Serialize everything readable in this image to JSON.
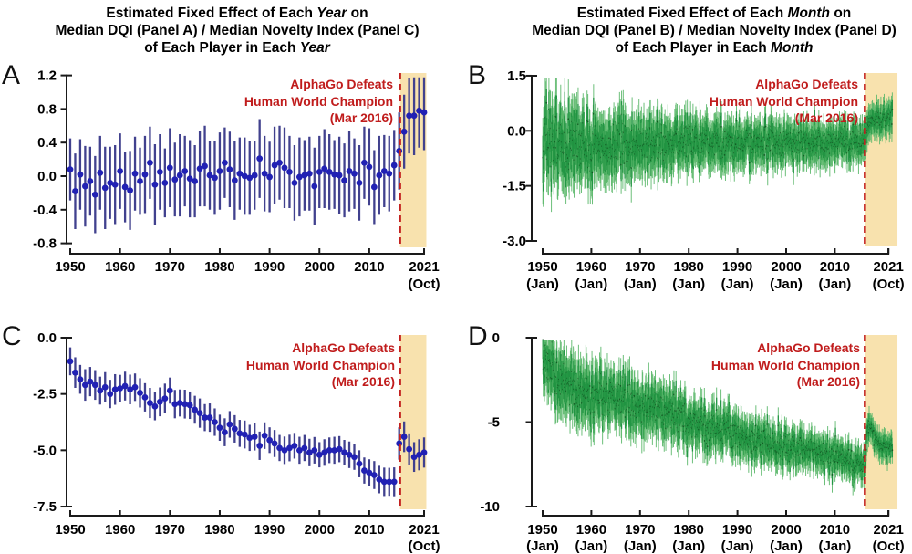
{
  "figure": {
    "left_title": {
      "lines": [
        [
          {
            "t": "Estimated Fixed Effect of Each "
          },
          {
            "t": "Year",
            "i": 1
          },
          {
            "t": " on"
          }
        ],
        [
          {
            "t": "Median DQI (Panel A) / Median Novelty Index (Panel C)"
          }
        ],
        [
          {
            "t": "of Each Player in Each "
          },
          {
            "t": "Year",
            "i": 1
          }
        ]
      ]
    },
    "right_title": {
      "lines": [
        [
          {
            "t": "Estimated Fixed Effect of Each "
          },
          {
            "t": "Month",
            "i": 1
          },
          {
            "t": " on"
          }
        ],
        [
          {
            "t": "Median DQI (Panel B) / Median Novelty Index (Panel D)"
          }
        ],
        [
          {
            "t": "of Each Player in Each "
          },
          {
            "t": "Month",
            "i": 1
          }
        ]
      ]
    },
    "annotation": {
      "line1": "AlphaGo Defeats",
      "line2": "Human World Champion",
      "line3": "(Mar 2016)",
      "color": "#c01c1c"
    },
    "colors": {
      "blue_point": "#2121b4",
      "blue_bar": "#41418e",
      "green_bar_outer": "#5cb86b",
      "green_bar_inner": "#1f9240",
      "green_dot": "#0f4a1c",
      "band": "#f8e2ae",
      "dash_line": "#c3201f",
      "axis": "#1a1a1a",
      "tick_text": "#000000"
    }
  },
  "chart_data": [
    {
      "panel": "A",
      "type": "scatter",
      "series_name": "Yearly fixed effect on Median DQI",
      "x_start_year": 1950,
      "ylim": [
        -0.8,
        1.2
      ],
      "y_ticks": [
        {
          "v": 1.2,
          "label": "1.2"
        },
        {
          "v": 0.8,
          "label": "0.8"
        },
        {
          "v": 0.4,
          "label": "0.4"
        },
        {
          "v": 0.0,
          "label": "0.0"
        },
        {
          "v": -0.4,
          "label": "-0.4"
        },
        {
          "v": -0.8,
          "label": "-0.8"
        }
      ],
      "x_ticks": [
        {
          "v": 1950,
          "l1": "1950"
        },
        {
          "v": 1960,
          "l1": "1960"
        },
        {
          "v": 1970,
          "l1": "1970"
        },
        {
          "v": 1980,
          "l1": "1980"
        },
        {
          "v": 1990,
          "l1": "1990"
        },
        {
          "v": 2000,
          "l1": "2000"
        },
        {
          "v": 2010,
          "l1": "2010"
        },
        {
          "v": 2021,
          "l1": "2021",
          "l2": "(Oct)"
        }
      ],
      "event_x": 2016.17,
      "band_end_x": 2021.45,
      "values": [
        0.08,
        -0.18,
        0.02,
        -0.12,
        -0.06,
        -0.22,
        0.04,
        -0.14,
        -0.08,
        -0.1,
        0.06,
        -0.13,
        -0.17,
        0.03,
        -0.06,
        0.02,
        0.16,
        -0.1,
        0.05,
        -0.08,
        0.1,
        -0.04,
        0.01,
        0.06,
        -0.03,
        -0.06,
        0.09,
        0.12,
        0.01,
        -0.02,
        0.06,
        0.16,
        0.08,
        -0.05,
        0.03,
        0.0,
        -0.02,
        0.01,
        0.21,
        0.03,
        -0.01,
        0.13,
        0.16,
        0.1,
        0.05,
        -0.08,
        -0.01,
        0.01,
        0.03,
        -0.12,
        0.05,
        0.09,
        0.05,
        0.02,
        0.01,
        -0.05,
        0.06,
        0.03,
        -0.08,
        0.16,
        0.11,
        -0.13,
        0.01,
        0.06,
        0.03,
        0.13,
        0.3,
        0.53,
        0.72,
        0.72,
        0.78,
        0.76
      ],
      "errors": [
        0.37,
        0.45,
        0.42,
        0.48,
        0.41,
        0.46,
        0.44,
        0.49,
        0.43,
        0.47,
        0.45,
        0.42,
        0.47,
        0.44,
        0.4,
        0.46,
        0.43,
        0.48,
        0.45,
        0.41,
        0.47,
        0.44,
        0.49,
        0.42,
        0.46,
        0.43,
        0.45,
        0.48,
        0.41,
        0.44,
        0.46,
        0.42,
        0.45,
        0.47,
        0.43,
        0.46,
        0.44,
        0.41,
        0.47,
        0.45,
        0.42,
        0.46,
        0.44,
        0.48,
        0.43,
        0.45,
        0.47,
        0.42,
        0.44,
        0.46,
        0.43,
        0.47,
        0.45,
        0.41,
        0.46,
        0.44,
        0.48,
        0.42,
        0.45,
        0.43,
        0.46,
        0.44,
        0.47,
        0.43,
        0.45,
        0.42,
        0.46,
        0.44,
        0.45,
        0.47,
        0.44,
        0.45
      ]
    },
    {
      "panel": "B",
      "type": "scatter",
      "series_name": "Monthly fixed effect on Median DQI",
      "monthly_range": [
        1950.0,
        2021.79
      ],
      "ylim": [
        -3.0,
        1.5
      ],
      "y_ticks": [
        {
          "v": 1.5,
          "label": "1.5"
        },
        {
          "v": 0.0,
          "label": "0.0"
        },
        {
          "v": -1.5,
          "label": "-1.5"
        },
        {
          "v": -3.0,
          "label": "-3.0"
        }
      ],
      "x_ticks": [
        {
          "v": 1950,
          "l1": "1950",
          "l2": "(Jan)"
        },
        {
          "v": 1960,
          "l1": "1960",
          "l2": "(Jan)"
        },
        {
          "v": 1970,
          "l1": "1970",
          "l2": "(Jan)"
        },
        {
          "v": 1980,
          "l1": "1980",
          "l2": "(Jan)"
        },
        {
          "v": 1990,
          "l1": "1990",
          "l2": "(Jan)"
        },
        {
          "v": 2000,
          "l1": "2000",
          "l2": "(Jan)"
        },
        {
          "v": 2010,
          "l1": "2010",
          "l2": "(Jan)"
        },
        {
          "v": 2021,
          "l1": "2021",
          "l2": "(Oct)"
        }
      ],
      "event_x": 2016.17,
      "band_end_x": 2022.85,
      "seed": 42,
      "envelope": [
        [
          1950,
          -0.3,
          1.05,
          0.45
        ],
        [
          1955,
          -0.4,
          0.95,
          0.4
        ],
        [
          1960,
          -0.4,
          0.85,
          0.33
        ],
        [
          1970,
          -0.38,
          0.75,
          0.28
        ],
        [
          1980,
          -0.35,
          0.65,
          0.25
        ],
        [
          1990,
          -0.33,
          0.6,
          0.22
        ],
        [
          2000,
          -0.35,
          0.55,
          0.2
        ],
        [
          2010,
          -0.3,
          0.5,
          0.18
        ],
        [
          2015,
          -0.26,
          0.5,
          0.16
        ],
        [
          2016.2,
          -0.22,
          0.48,
          0.15
        ],
        [
          2016.6,
          0.02,
          0.45,
          0.13
        ],
        [
          2017.5,
          0.25,
          0.42,
          0.12
        ],
        [
          2019,
          0.33,
          0.42,
          0.12
        ],
        [
          2021.8,
          0.4,
          0.42,
          0.12
        ]
      ]
    },
    {
      "panel": "C",
      "type": "scatter",
      "series_name": "Yearly fixed effect on Median Novelty Index",
      "x_start_year": 1950,
      "ylim": [
        -7.5,
        0.0
      ],
      "y_ticks": [
        {
          "v": 0.0,
          "label": "0.0"
        },
        {
          "v": -2.5,
          "label": "-2.5"
        },
        {
          "v": -5.0,
          "label": "-5.0"
        },
        {
          "v": -7.5,
          "label": "-7.5"
        }
      ],
      "x_ticks": [
        {
          "v": 1950,
          "l1": "1950"
        },
        {
          "v": 1960,
          "l1": "1960"
        },
        {
          "v": 1970,
          "l1": "1970"
        },
        {
          "v": 1980,
          "l1": "1980"
        },
        {
          "v": 1990,
          "l1": "1990"
        },
        {
          "v": 2000,
          "l1": "2000"
        },
        {
          "v": 2010,
          "l1": "2010"
        },
        {
          "v": 2021,
          "l1": "2021",
          "l2": "(Oct)"
        }
      ],
      "event_x": 2016.17,
      "band_end_x": 2021.45,
      "values": [
        -1.05,
        -1.55,
        -1.85,
        -2.1,
        -1.95,
        -2.1,
        -2.35,
        -2.2,
        -2.5,
        -2.3,
        -2.25,
        -2.15,
        -2.3,
        -2.2,
        -2.45,
        -2.65,
        -2.9,
        -3.05,
        -2.85,
        -2.7,
        -2.35,
        -2.95,
        -2.9,
        -2.95,
        -3.0,
        -3.2,
        -3.35,
        -3.55,
        -3.55,
        -3.75,
        -4.0,
        -4.2,
        -3.85,
        -4.05,
        -4.25,
        -4.3,
        -4.45,
        -4.4,
        -4.8,
        -4.35,
        -4.55,
        -4.7,
        -4.9,
        -5.0,
        -4.9,
        -4.8,
        -5.0,
        -4.9,
        -5.1,
        -5.0,
        -5.2,
        -5.1,
        -5.0,
        -5.0,
        -4.95,
        -5.1,
        -5.2,
        -5.3,
        -5.6,
        -5.9,
        -6.0,
        -6.1,
        -6.3,
        -6.4,
        -6.4,
        -6.4,
        -4.7,
        -4.4,
        -4.95,
        -5.3,
        -5.2,
        -5.1
      ],
      "errors": [
        0.62,
        0.68,
        0.64,
        0.7,
        0.65,
        0.66,
        0.62,
        0.67,
        0.63,
        0.68,
        0.6,
        0.64,
        0.66,
        0.61,
        0.65,
        0.63,
        0.67,
        0.62,
        0.64,
        0.66,
        0.58,
        0.63,
        0.6,
        0.64,
        0.61,
        0.62,
        0.65,
        0.6,
        0.63,
        0.61,
        0.58,
        0.62,
        0.59,
        0.61,
        0.6,
        0.62,
        0.58,
        0.61,
        0.63,
        0.59,
        0.57,
        0.6,
        0.58,
        0.61,
        0.59,
        0.57,
        0.6,
        0.58,
        0.61,
        0.59,
        0.56,
        0.59,
        0.57,
        0.6,
        0.58,
        0.56,
        0.59,
        0.57,
        0.6,
        0.58,
        0.6,
        0.62,
        0.61,
        0.63,
        0.62,
        0.64,
        0.72,
        0.68,
        0.7,
        0.66,
        0.69,
        0.67
      ]
    },
    {
      "panel": "D",
      "type": "scatter",
      "series_name": "Monthly fixed effect on Median Novelty Index",
      "monthly_range": [
        1950.0,
        2021.79
      ],
      "ylim": [
        -10,
        0
      ],
      "y_ticks": [
        {
          "v": 0,
          "label": "0"
        },
        {
          "v": -5,
          "label": "-5"
        },
        {
          "v": -10,
          "label": "-10"
        }
      ],
      "x_ticks": [
        {
          "v": 1950,
          "l1": "1950",
          "l2": "(Jan)"
        },
        {
          "v": 1960,
          "l1": "1960",
          "l2": "(Jan)"
        },
        {
          "v": 1970,
          "l1": "1970",
          "l2": "(Jan)"
        },
        {
          "v": 1980,
          "l1": "1980",
          "l2": "(Jan)"
        },
        {
          "v": 1990,
          "l1": "1990",
          "l2": "(Jan)"
        },
        {
          "v": 2000,
          "l1": "2000",
          "l2": "(Jan)"
        },
        {
          "v": 2010,
          "l1": "2010",
          "l2": "(Jan)"
        },
        {
          "v": 2021,
          "l1": "2021",
          "l2": "(Oct)"
        }
      ],
      "event_x": 2016.17,
      "band_end_x": 2022.85,
      "seed": 7,
      "envelope": [
        [
          1950,
          -1.3,
          1.6,
          0.55
        ],
        [
          1953,
          -2.4,
          1.7,
          0.6
        ],
        [
          1958,
          -3.0,
          1.7,
          0.6
        ],
        [
          1965,
          -3.6,
          1.5,
          0.55
        ],
        [
          1970,
          -4.0,
          1.45,
          0.5
        ],
        [
          1975,
          -4.3,
          1.4,
          0.5
        ],
        [
          1980,
          -4.9,
          1.3,
          0.45
        ],
        [
          1985,
          -5.4,
          1.25,
          0.45
        ],
        [
          1990,
          -5.8,
          1.2,
          0.4
        ],
        [
          1995,
          -6.2,
          1.15,
          0.4
        ],
        [
          2000,
          -6.5,
          1.1,
          0.38
        ],
        [
          2005,
          -6.6,
          1.05,
          0.35
        ],
        [
          2010,
          -7.0,
          1.0,
          0.35
        ],
        [
          2014,
          -7.4,
          0.95,
          0.32
        ],
        [
          2016.2,
          -7.7,
          0.9,
          0.3
        ],
        [
          2016.6,
          -5.8,
          0.85,
          0.27
        ],
        [
          2017.1,
          -5.2,
          0.8,
          0.25
        ],
        [
          2018.3,
          -5.9,
          0.8,
          0.25
        ],
        [
          2019.5,
          -6.4,
          0.8,
          0.25
        ],
        [
          2021.8,
          -6.4,
          0.8,
          0.25
        ]
      ]
    }
  ]
}
